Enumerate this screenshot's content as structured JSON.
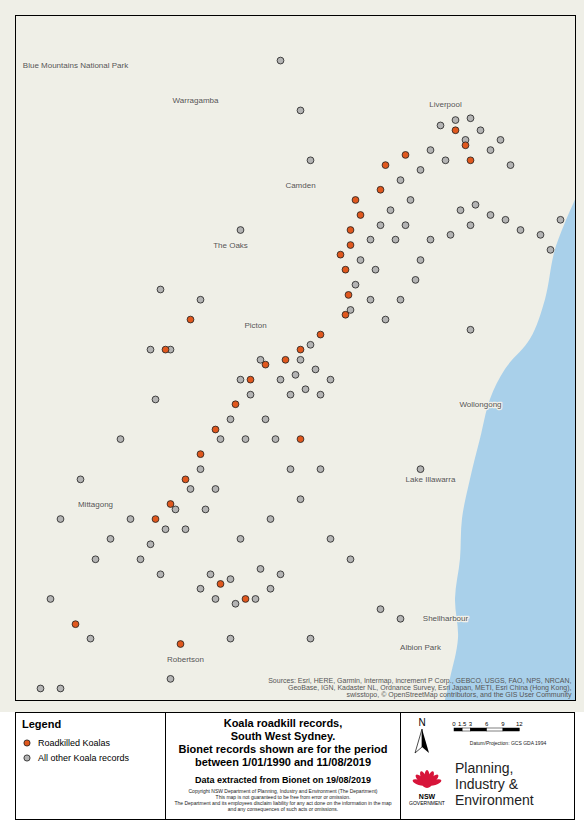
{
  "chart_data": {
    "type": "scatter",
    "title": "Koala roadkill records, South West Sydney.",
    "subtitle": "Bionet records shown are for the period between 1/01/1990 and 11/08/2019",
    "note": "Data extracted from Bionet on 19/08/2019",
    "copyright": [
      "Copyright NSW Department of Planning, Industry and Environment (The Department)",
      "This map is not guaranteed to be free from error or omission.",
      "The Department and its employees disclaim liability for any act done on the information in the map and any consequences of such acts or omissions."
    ],
    "legend_title": "Legend",
    "sources": "Sources: Esri, HERE, Garmin, Intermap, increment P Corp., GEBCO, USGS, FAO, NPS, NRCAN, GeoBase, IGN, Kadaster NL, Ordnance Survey, Esri Japan, METI, Esri China (Hong Kong), swisstopo, © OpenStreetMap contributors, and the GIS User Community",
    "north": "N",
    "scale_bar": [
      0,
      1.5,
      3,
      6,
      9,
      12
    ],
    "datum": "Datum/Projection: GCS GDA 1994",
    "logo": {
      "name": "NSW",
      "sub": "GOVERNMENT",
      "agency": "Planning, Industry & Environment"
    },
    "tick_labels": false,
    "xlim": [
      149.98,
      151.1
    ],
    "ylim": [
      -34.91,
      -33.77
    ],
    "coastline": [
      [
        151.1,
        -34.077
      ],
      [
        151.06,
        -34.16
      ],
      [
        151.04,
        -34.243
      ],
      [
        151.01,
        -34.309
      ],
      [
        150.96,
        -34.359
      ],
      [
        150.93,
        -34.409
      ],
      [
        150.91,
        -34.475
      ],
      [
        150.89,
        -34.542
      ],
      [
        150.874,
        -34.608
      ],
      [
        150.87,
        -34.675
      ],
      [
        150.86,
        -34.741
      ],
      [
        150.866,
        -34.807
      ],
      [
        150.85,
        -34.874
      ],
      [
        150.84,
        -34.91
      ]
    ],
    "places": [
      {
        "name": "Liverpool",
        "lon": 150.84,
        "lat": -33.918
      },
      {
        "name": "Camden",
        "lon": 150.55,
        "lat": -34.052
      },
      {
        "name": "Warragamba",
        "lon": 150.34,
        "lat": -33.911
      },
      {
        "name": "The Oaks",
        "lon": 150.41,
        "lat": -34.152
      },
      {
        "name": "Picton",
        "lon": 150.46,
        "lat": -34.285
      },
      {
        "name": "Mittagong",
        "lon": 150.14,
        "lat": -34.583
      },
      {
        "name": "Robertson",
        "lon": 150.32,
        "lat": -34.841
      },
      {
        "name": "Wollongong",
        "lon": 150.91,
        "lat": -34.417
      },
      {
        "name": "Lake Illawarra",
        "lon": 150.81,
        "lat": -34.542
      },
      {
        "name": "Shellharbour",
        "lon": 150.84,
        "lat": -34.774
      },
      {
        "name": "Albion Park",
        "lon": 150.79,
        "lat": -34.821
      },
      {
        "name": "Blue Mountains National Park",
        "lon": 150.1,
        "lat": -33.853
      }
    ],
    "series": [
      {
        "name": "All other Koala records",
        "color": "#b4b4b4",
        "marker": "circle",
        "values": [
          [
            150.83,
            -33.953
          ],
          [
            150.86,
            -33.944
          ],
          [
            150.89,
            -33.941
          ],
          [
            150.91,
            -33.961
          ],
          [
            150.95,
            -33.977
          ],
          [
            150.88,
            -33.977
          ],
          [
            150.81,
            -33.994
          ],
          [
            150.84,
            -34.011
          ],
          [
            150.93,
            -33.994
          ],
          [
            150.97,
            -34.019
          ],
          [
            150.87,
            -34.094
          ],
          [
            150.9,
            -34.085
          ],
          [
            150.93,
            -34.102
          ],
          [
            150.96,
            -34.11
          ],
          [
            150.99,
            -34.127
          ],
          [
            151.03,
            -34.135
          ],
          [
            150.89,
            -34.119
          ],
          [
            150.85,
            -34.135
          ],
          [
            150.79,
            -34.027
          ],
          [
            150.75,
            -34.044
          ],
          [
            150.77,
            -34.077
          ],
          [
            150.73,
            -34.094
          ],
          [
            150.71,
            -34.119
          ],
          [
            150.69,
            -34.143
          ],
          [
            150.74,
            -34.143
          ],
          [
            150.67,
            -34.177
          ],
          [
            150.7,
            -34.193
          ],
          [
            150.66,
            -34.218
          ],
          [
            150.69,
            -34.243
          ],
          [
            150.65,
            -34.26
          ],
          [
            150.72,
            -34.276
          ],
          [
            150.75,
            -34.243
          ],
          [
            150.78,
            -34.21
          ],
          [
            150.79,
            -34.177
          ],
          [
            150.81,
            -34.143
          ],
          [
            150.76,
            -34.119
          ],
          [
            150.57,
            -34.318
          ],
          [
            150.55,
            -34.343
          ],
          [
            150.54,
            -34.368
          ],
          [
            150.56,
            -34.392
          ],
          [
            150.53,
            -34.401
          ],
          [
            150.58,
            -34.359
          ],
          [
            150.51,
            -34.376
          ],
          [
            150.59,
            -34.401
          ],
          [
            150.61,
            -34.376
          ],
          [
            150.47,
            -34.343
          ],
          [
            150.43,
            -34.376
          ],
          [
            150.45,
            -34.401
          ],
          [
            150.41,
            -34.442
          ],
          [
            150.39,
            -34.475
          ],
          [
            150.44,
            -34.475
          ],
          [
            150.48,
            -34.442
          ],
          [
            150.5,
            -34.475
          ],
          [
            150.35,
            -34.525
          ],
          [
            150.33,
            -34.558
          ],
          [
            150.3,
            -34.592
          ],
          [
            150.28,
            -34.625
          ],
          [
            150.25,
            -34.65
          ],
          [
            150.23,
            -34.675
          ],
          [
            150.32,
            -34.625
          ],
          [
            150.36,
            -34.592
          ],
          [
            150.38,
            -34.558
          ],
          [
            150.27,
            -34.7
          ],
          [
            150.21,
            -34.608
          ],
          [
            150.17,
            -34.641
          ],
          [
            150.14,
            -34.675
          ],
          [
            150.35,
            -34.724
          ],
          [
            150.38,
            -34.741
          ],
          [
            150.42,
            -34.749
          ],
          [
            150.46,
            -34.741
          ],
          [
            150.49,
            -34.724
          ],
          [
            150.51,
            -34.7
          ],
          [
            150.47,
            -34.691
          ],
          [
            150.41,
            -34.708
          ],
          [
            150.37,
            -34.7
          ],
          [
            150.43,
            -34.641
          ],
          [
            150.49,
            -34.608
          ],
          [
            150.55,
            -34.575
          ],
          [
            150.59,
            -34.525
          ],
          [
            150.53,
            -34.525
          ],
          [
            150.61,
            -34.641
          ],
          [
            150.65,
            -34.675
          ],
          [
            150.11,
            -34.542
          ],
          [
            150.07,
            -34.608
          ],
          [
            150.05,
            -34.741
          ],
          [
            150.13,
            -34.807
          ],
          [
            150.07,
            -34.89
          ],
          [
            150.19,
            -34.475
          ],
          [
            150.26,
            -34.409
          ],
          [
            150.29,
            -34.326
          ],
          [
            150.27,
            -34.226
          ],
          [
            150.51,
            -33.845
          ],
          [
            150.55,
            -33.928
          ],
          [
            150.57,
            -34.011
          ],
          [
            150.43,
            -34.127
          ],
          [
            150.35,
            -34.243
          ],
          [
            150.25,
            -34.326
          ],
          [
            150.41,
            -34.807
          ],
          [
            150.57,
            -34.807
          ],
          [
            150.71,
            -34.758
          ],
          [
            150.79,
            -34.525
          ],
          [
            150.89,
            -34.293
          ],
          [
            151.05,
            -34.16
          ],
          [
            151.07,
            -34.11
          ],
          [
            150.75,
            -34.774
          ],
          [
            150.29,
            -34.874
          ],
          [
            150.03,
            -34.89
          ]
        ]
      },
      {
        "name": "Roadkilled Koalas",
        "color": "#e0581e",
        "marker": "circle",
        "values": [
          [
            150.86,
            -33.961
          ],
          [
            150.88,
            -33.986
          ],
          [
            150.71,
            -34.06
          ],
          [
            150.67,
            -34.102
          ],
          [
            150.65,
            -34.152
          ],
          [
            150.64,
            -34.193
          ],
          [
            150.646,
            -34.235
          ],
          [
            150.64,
            -34.268
          ],
          [
            150.59,
            -34.301
          ],
          [
            150.55,
            -34.326
          ],
          [
            150.52,
            -34.343
          ],
          [
            150.48,
            -34.351
          ],
          [
            150.45,
            -34.376
          ],
          [
            150.42,
            -34.417
          ],
          [
            150.38,
            -34.459
          ],
          [
            150.35,
            -34.5
          ],
          [
            150.32,
            -34.542
          ],
          [
            150.29,
            -34.583
          ],
          [
            150.26,
            -34.608
          ],
          [
            150.28,
            -34.326
          ],
          [
            150.33,
            -34.276
          ],
          [
            150.39,
            -34.716
          ],
          [
            150.44,
            -34.741
          ],
          [
            150.31,
            -34.816
          ],
          [
            150.1,
            -34.783
          ],
          [
            150.55,
            -34.475
          ],
          [
            150.76,
            -34.002
          ],
          [
            150.72,
            -34.019
          ],
          [
            150.89,
            -34.011
          ],
          [
            150.65,
            -34.127
          ],
          [
            150.63,
            -34.168
          ],
          [
            150.66,
            -34.077
          ]
        ]
      }
    ]
  }
}
